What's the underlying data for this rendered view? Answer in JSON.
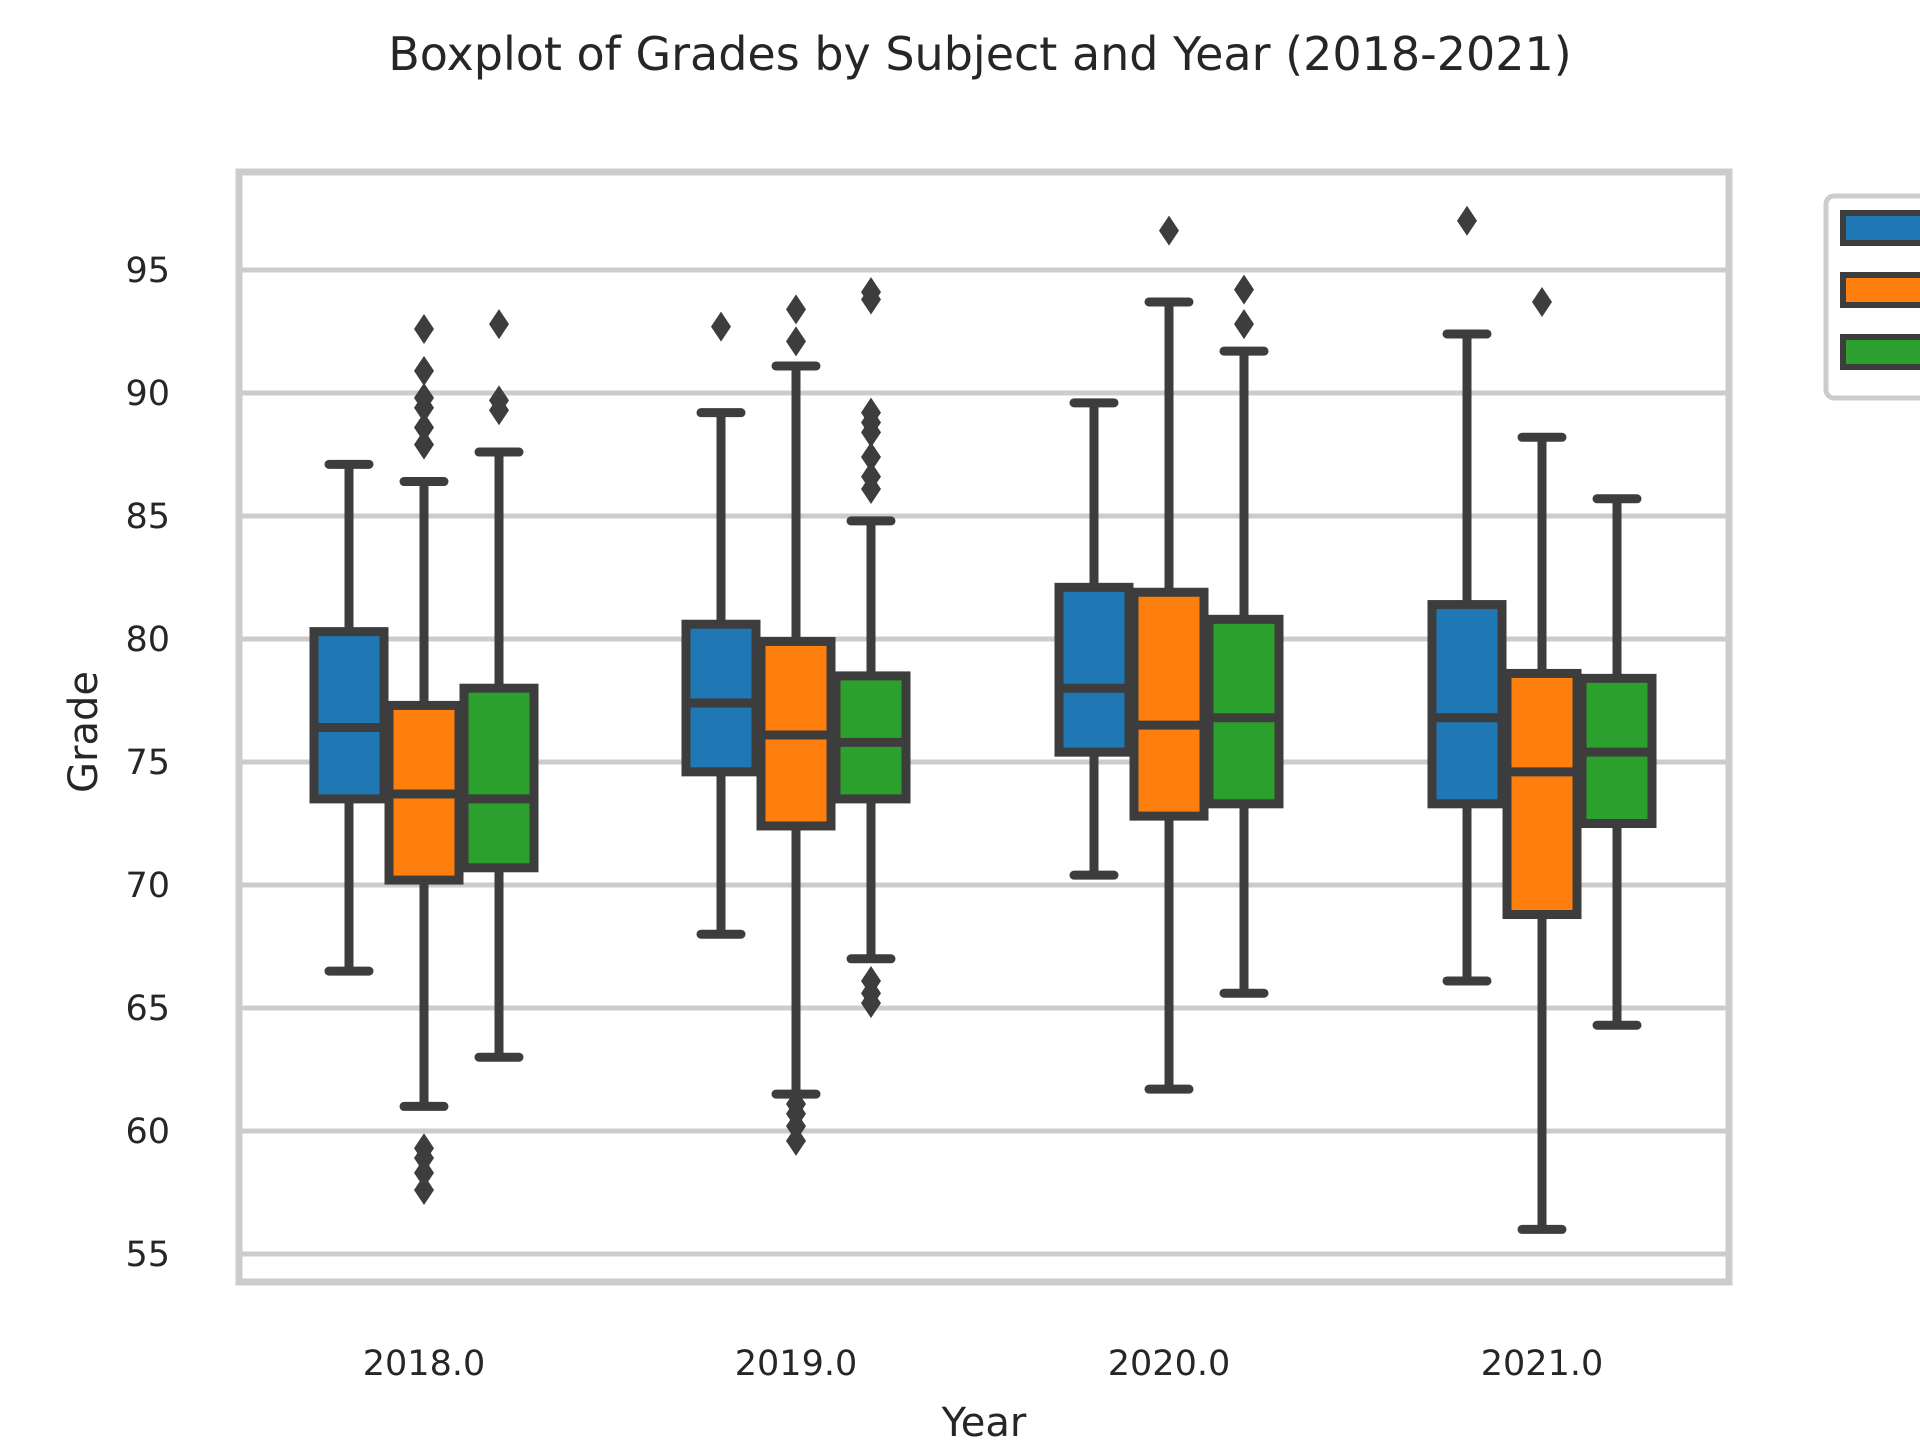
{
  "chart_data": {
    "type": "boxplot",
    "title": "Boxplot of Grades by Subject and Year (2018-2021)",
    "xlabel": "Year",
    "ylabel": "Grade",
    "categories": [
      "2018.0",
      "2019.0",
      "2020.0",
      "2021.0"
    ],
    "yticks": [
      55,
      60,
      65,
      70,
      75,
      80,
      85,
      90,
      95
    ],
    "ylim": [
      54,
      98
    ],
    "grid": true,
    "legend_position": "top-right",
    "series": [
      {
        "color": "#1f77b4",
        "boxes": [
          {
            "whisker_low": 66.5,
            "q1": 73.5,
            "median": 76.4,
            "q3": 80.3,
            "whisker_high": 87.1,
            "outliers": []
          },
          {
            "whisker_low": 68.0,
            "q1": 74.6,
            "median": 77.4,
            "q3": 80.6,
            "whisker_high": 89.2,
            "outliers": [
              92.7
            ]
          },
          {
            "whisker_low": 70.4,
            "q1": 75.4,
            "median": 78.0,
            "q3": 82.1,
            "whisker_high": 89.6,
            "outliers": []
          },
          {
            "whisker_low": 66.1,
            "q1": 73.3,
            "median": 76.8,
            "q3": 81.4,
            "whisker_high": 92.4,
            "outliers": [
              97.0
            ]
          }
        ]
      },
      {
        "color": "#ff7f0e",
        "boxes": [
          {
            "whisker_low": 61.0,
            "q1": 70.2,
            "median": 73.7,
            "q3": 77.3,
            "whisker_high": 86.4,
            "outliers": [
              57.6,
              58.3,
              58.9,
              59.3,
              87.9,
              88.6,
              89.4,
              89.8,
              90.9,
              92.6
            ]
          },
          {
            "whisker_low": 61.5,
            "q1": 72.4,
            "median": 76.1,
            "q3": 79.9,
            "whisker_high": 91.1,
            "outliers": [
              59.6,
              60.2,
              60.7,
              61.1,
              92.1,
              93.4
            ]
          },
          {
            "whisker_low": 61.7,
            "q1": 72.8,
            "median": 76.5,
            "q3": 81.9,
            "whisker_high": 93.7,
            "outliers": [
              96.6
            ]
          },
          {
            "whisker_low": 56.0,
            "q1": 68.8,
            "median": 74.6,
            "q3": 78.6,
            "whisker_high": 88.2,
            "outliers": [
              93.7
            ]
          }
        ]
      },
      {
        "color": "#2ca02c",
        "boxes": [
          {
            "whisker_low": 63.0,
            "q1": 70.7,
            "median": 73.5,
            "q3": 78.0,
            "whisker_high": 87.6,
            "outliers": [
              89.3,
              89.7,
              92.8
            ]
          },
          {
            "whisker_low": 67.0,
            "q1": 73.5,
            "median": 75.8,
            "q3": 78.5,
            "whisker_high": 84.8,
            "outliers": [
              65.2,
              65.6,
              66.1,
              86.1,
              86.6,
              87.4,
              88.4,
              88.8,
              89.2,
              93.8,
              94.1
            ]
          },
          {
            "whisker_low": 65.6,
            "q1": 73.3,
            "median": 76.8,
            "q3": 80.8,
            "whisker_high": 91.7,
            "outliers": [
              92.8,
              94.2
            ]
          },
          {
            "whisker_low": 64.3,
            "q1": 72.5,
            "median": 75.4,
            "q3": 78.4,
            "whisker_high": 85.7,
            "outliers": []
          }
        ]
      }
    ]
  }
}
